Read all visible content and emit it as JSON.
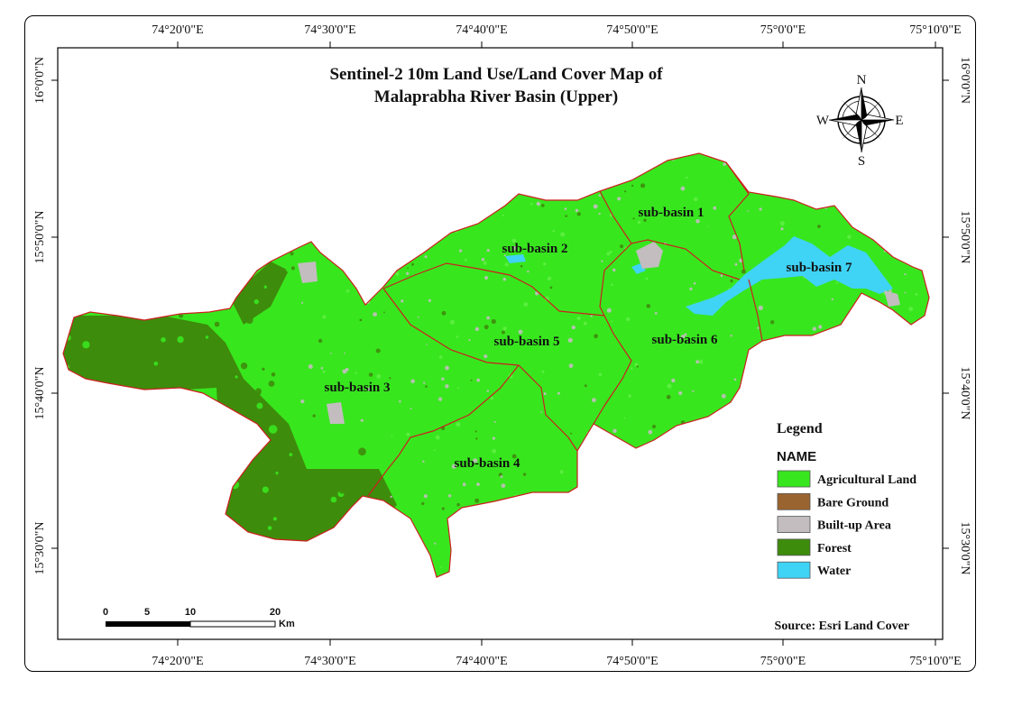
{
  "map": {
    "title_line1": "Sentinel-2 10m Land Use/Land Cover Map of",
    "title_line2": "Malaprabha River Basin (Upper)",
    "source": "Source: Esri Land Cover",
    "graticule": {
      "longitudes": [
        "74°20'0\"E",
        "74°30'0\"E",
        "74°40'0\"E",
        "74°50'0\"E",
        "75°0'0\"E",
        "75°10'0\"E"
      ],
      "latitudes": [
        "16°0'0\"N",
        "15°50'0\"N",
        "15°40'0\"N",
        "15°30'0\"N"
      ]
    },
    "sub_basins": [
      "sub-basin 1",
      "sub-basin 2",
      "sub-basin 3",
      "sub-basin 4",
      "sub-basin 5",
      "sub-basin 6",
      "sub-basin 7"
    ],
    "north_arrow": {
      "n": "N",
      "s": "S",
      "e": "E",
      "w": "W"
    },
    "scale_bar": {
      "ticks": [
        "0",
        "5",
        "10",
        "20"
      ],
      "unit": "Km"
    },
    "legend": {
      "heading": "Legend",
      "field": "NAME",
      "classes": [
        {
          "label": "Agricultural Land",
          "color": "#38e61e"
        },
        {
          "label": "Bare Ground",
          "color": "#9a6430"
        },
        {
          "label": "Built-up Area",
          "color": "#c3bdbf"
        },
        {
          "label": "Forest",
          "color": "#3e8c0c"
        },
        {
          "label": "Water",
          "color": "#3fd3f5"
        }
      ]
    },
    "colors": {
      "boundary": "#cc1f1f",
      "agri": "#38e61e",
      "forest": "#3e8c0c",
      "builtup": "#c3bdbf",
      "water": "#3fd3f5"
    }
  }
}
